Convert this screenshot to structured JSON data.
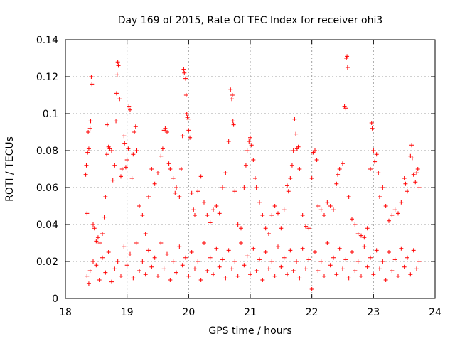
{
  "chart_data": {
    "type": "scatter",
    "title": "Day 169 of 2015, Rate Of TEC Index for receiver ohi3",
    "xlabel": "GPS time / hours",
    "ylabel": "ROTI / TECUs",
    "xlim": [
      18,
      24
    ],
    "ylim": [
      0,
      0.14
    ],
    "xticks": [
      18,
      19,
      20,
      21,
      22,
      23,
      24
    ],
    "yticks": [
      0,
      0.02,
      0.04,
      0.06,
      0.08,
      0.1,
      0.12,
      0.14
    ],
    "ytick_labels": [
      "0",
      "0.02",
      "0.04",
      "0.06",
      "0.08",
      "0.1",
      "0.12",
      "0.14"
    ],
    "grid": true,
    "marker": "+",
    "color": "#ff0000",
    "series": [
      {
        "name": "ROTI",
        "points": [
          [
            18.33,
            0.067
          ],
          [
            18.34,
            0.072
          ],
          [
            18.35,
            0.046
          ],
          [
            18.36,
            0.079
          ],
          [
            18.37,
            0.09
          ],
          [
            18.38,
            0.081
          ],
          [
            18.4,
            0.092
          ],
          [
            18.41,
            0.096
          ],
          [
            18.42,
            0.12
          ],
          [
            18.43,
            0.116
          ],
          [
            18.45,
            0.04
          ],
          [
            18.47,
            0.038
          ],
          [
            18.5,
            0.031
          ],
          [
            18.53,
            0.033
          ],
          [
            18.56,
            0.03
          ],
          [
            18.6,
            0.035
          ],
          [
            18.63,
            0.044
          ],
          [
            18.65,
            0.055
          ],
          [
            18.67,
            0.078
          ],
          [
            18.68,
            0.094
          ],
          [
            18.7,
            0.082
          ],
          [
            18.72,
            0.081
          ],
          [
            18.75,
            0.08
          ],
          [
            18.77,
            0.064
          ],
          [
            18.8,
            0.072
          ],
          [
            18.82,
            0.096
          ],
          [
            18.83,
            0.111
          ],
          [
            18.84,
            0.121
          ],
          [
            18.85,
            0.128
          ],
          [
            18.86,
            0.126
          ],
          [
            18.88,
            0.108
          ],
          [
            18.9,
            0.066
          ],
          [
            18.92,
            0.07
          ],
          [
            18.95,
            0.088
          ],
          [
            18.96,
            0.084
          ],
          [
            18.98,
            0.071
          ],
          [
            19.0,
            0.075
          ],
          [
            19.02,
            0.081
          ],
          [
            19.03,
            0.104
          ],
          [
            19.05,
            0.102
          ],
          [
            19.08,
            0.065
          ],
          [
            19.1,
            0.078
          ],
          [
            19.12,
            0.09
          ],
          [
            19.14,
            0.093
          ],
          [
            19.16,
            0.08
          ],
          [
            19.2,
            0.05
          ],
          [
            19.25,
            0.045
          ],
          [
            19.3,
            0.035
          ],
          [
            19.35,
            0.055
          ],
          [
            19.4,
            0.07
          ],
          [
            19.45,
            0.062
          ],
          [
            19.5,
            0.068
          ],
          [
            19.55,
            0.077
          ],
          [
            19.58,
            0.081
          ],
          [
            19.6,
            0.091
          ],
          [
            19.62,
            0.092
          ],
          [
            19.65,
            0.09
          ],
          [
            19.68,
            0.073
          ],
          [
            19.7,
            0.07
          ],
          [
            19.75,
            0.065
          ],
          [
            19.78,
            0.057
          ],
          [
            19.8,
            0.06
          ],
          [
            19.85,
            0.055
          ],
          [
            19.88,
            0.07
          ],
          [
            19.9,
            0.088
          ],
          [
            19.92,
            0.124
          ],
          [
            19.93,
            0.122
          ],
          [
            19.95,
            0.119
          ],
          [
            19.96,
            0.11
          ],
          [
            19.97,
            0.1
          ],
          [
            19.98,
            0.098
          ],
          [
            19.99,
            0.097
          ],
          [
            20.0,
            0.091
          ],
          [
            20.02,
            0.087
          ],
          [
            20.05,
            0.057
          ],
          [
            20.08,
            0.048
          ],
          [
            20.1,
            0.045
          ],
          [
            20.15,
            0.058
          ],
          [
            20.2,
            0.066
          ],
          [
            20.25,
            0.052
          ],
          [
            20.3,
            0.045
          ],
          [
            20.35,
            0.041
          ],
          [
            20.4,
            0.048
          ],
          [
            20.45,
            0.05
          ],
          [
            20.5,
            0.046
          ],
          [
            20.55,
            0.06
          ],
          [
            20.6,
            0.068
          ],
          [
            20.65,
            0.085
          ],
          [
            20.68,
            0.113
          ],
          [
            20.7,
            0.108
          ],
          [
            20.71,
            0.11
          ],
          [
            20.72,
            0.096
          ],
          [
            20.73,
            0.094
          ],
          [
            20.75,
            0.058
          ],
          [
            20.8,
            0.04
          ],
          [
            20.85,
            0.038
          ],
          [
            20.9,
            0.06
          ],
          [
            20.93,
            0.072
          ],
          [
            20.95,
            0.08
          ],
          [
            20.98,
            0.085
          ],
          [
            21.0,
            0.087
          ],
          [
            21.02,
            0.083
          ],
          [
            21.05,
            0.075
          ],
          [
            21.08,
            0.065
          ],
          [
            21.1,
            0.06
          ],
          [
            21.15,
            0.052
          ],
          [
            21.2,
            0.045
          ],
          [
            21.25,
            0.038
          ],
          [
            21.3,
            0.035
          ],
          [
            21.35,
            0.045
          ],
          [
            21.4,
            0.05
          ],
          [
            21.45,
            0.046
          ],
          [
            21.5,
            0.038
          ],
          [
            21.55,
            0.048
          ],
          [
            21.6,
            0.061
          ],
          [
            21.62,
            0.058
          ],
          [
            21.65,
            0.065
          ],
          [
            21.68,
            0.072
          ],
          [
            21.7,
            0.08
          ],
          [
            21.72,
            0.097
          ],
          [
            21.74,
            0.089
          ],
          [
            21.76,
            0.081
          ],
          [
            21.78,
            0.082
          ],
          [
            21.8,
            0.07
          ],
          [
            21.85,
            0.045
          ],
          [
            21.9,
            0.039
          ],
          [
            21.95,
            0.038
          ],
          [
            22.0,
            0.065
          ],
          [
            22.02,
            0.079
          ],
          [
            22.05,
            0.08
          ],
          [
            22.08,
            0.075
          ],
          [
            22.1,
            0.05
          ],
          [
            22.15,
            0.048
          ],
          [
            22.2,
            0.045
          ],
          [
            22.25,
            0.052
          ],
          [
            22.3,
            0.05
          ],
          [
            22.35,
            0.048
          ],
          [
            22.4,
            0.062
          ],
          [
            22.42,
            0.067
          ],
          [
            22.45,
            0.07
          ],
          [
            22.5,
            0.073
          ],
          [
            22.53,
            0.104
          ],
          [
            22.55,
            0.103
          ],
          [
            22.56,
            0.13
          ],
          [
            22.57,
            0.131
          ],
          [
            22.58,
            0.125
          ],
          [
            22.6,
            0.055
          ],
          [
            22.65,
            0.043
          ],
          [
            22.7,
            0.04
          ],
          [
            22.75,
            0.035
          ],
          [
            22.8,
            0.034
          ],
          [
            22.85,
            0.033
          ],
          [
            22.9,
            0.038
          ],
          [
            22.95,
            0.07
          ],
          [
            22.97,
            0.095
          ],
          [
            22.98,
            0.092
          ],
          [
            23.0,
            0.08
          ],
          [
            23.02,
            0.074
          ],
          [
            23.05,
            0.078
          ],
          [
            23.08,
            0.068
          ],
          [
            23.1,
            0.055
          ],
          [
            23.15,
            0.06
          ],
          [
            23.2,
            0.05
          ],
          [
            23.25,
            0.042
          ],
          [
            23.3,
            0.045
          ],
          [
            23.35,
            0.048
          ],
          [
            23.4,
            0.046
          ],
          [
            23.45,
            0.052
          ],
          [
            23.5,
            0.065
          ],
          [
            23.52,
            0.062
          ],
          [
            23.55,
            0.058
          ],
          [
            23.6,
            0.077
          ],
          [
            23.62,
            0.083
          ],
          [
            23.63,
            0.076
          ],
          [
            23.65,
            0.067
          ],
          [
            23.68,
            0.063
          ],
          [
            23.7,
            0.068
          ],
          [
            23.72,
            0.07
          ],
          [
            23.74,
            0.06
          ],
          [
            18.35,
            0.012
          ],
          [
            18.38,
            0.008
          ],
          [
            18.4,
            0.015
          ],
          [
            18.45,
            0.02
          ],
          [
            18.5,
            0.018
          ],
          [
            18.55,
            0.01
          ],
          [
            18.6,
            0.022
          ],
          [
            18.65,
            0.014
          ],
          [
            18.7,
            0.025
          ],
          [
            18.75,
            0.009
          ],
          [
            18.8,
            0.016
          ],
          [
            18.85,
            0.02
          ],
          [
            18.9,
            0.012
          ],
          [
            18.95,
            0.028
          ],
          [
            19.0,
            0.018
          ],
          [
            19.05,
            0.024
          ],
          [
            19.1,
            0.011
          ],
          [
            19.15,
            0.03
          ],
          [
            19.2,
            0.015
          ],
          [
            19.25,
            0.02
          ],
          [
            19.3,
            0.013
          ],
          [
            19.35,
            0.026
          ],
          [
            19.4,
            0.017
          ],
          [
            19.45,
            0.022
          ],
          [
            19.5,
            0.012
          ],
          [
            19.55,
            0.03
          ],
          [
            19.6,
            0.016
          ],
          [
            19.65,
            0.024
          ],
          [
            19.7,
            0.01
          ],
          [
            19.75,
            0.02
          ],
          [
            19.8,
            0.014
          ],
          [
            19.85,
            0.028
          ],
          [
            19.9,
            0.018
          ],
          [
            19.95,
            0.022
          ],
          [
            20.0,
            0.012
          ],
          [
            20.05,
            0.025
          ],
          [
            20.1,
            0.016
          ],
          [
            20.15,
            0.02
          ],
          [
            20.2,
            0.01
          ],
          [
            20.25,
            0.03
          ],
          [
            20.3,
            0.015
          ],
          [
            20.35,
            0.022
          ],
          [
            20.4,
            0.013
          ],
          [
            20.45,
            0.027
          ],
          [
            20.5,
            0.017
          ],
          [
            20.55,
            0.021
          ],
          [
            20.6,
            0.011
          ],
          [
            20.65,
            0.026
          ],
          [
            20.7,
            0.016
          ],
          [
            20.75,
            0.02
          ],
          [
            20.8,
            0.012
          ],
          [
            20.85,
            0.03
          ],
          [
            20.9,
            0.018
          ],
          [
            20.95,
            0.023
          ],
          [
            21.0,
            0.013
          ],
          [
            21.05,
            0.027
          ],
          [
            21.1,
            0.015
          ],
          [
            21.15,
            0.021
          ],
          [
            21.2,
            0.01
          ],
          [
            21.25,
            0.025
          ],
          [
            21.3,
            0.016
          ],
          [
            21.35,
            0.02
          ],
          [
            21.4,
            0.012
          ],
          [
            21.45,
            0.028
          ],
          [
            21.5,
            0.017
          ],
          [
            21.55,
            0.022
          ],
          [
            21.6,
            0.013
          ],
          [
            21.65,
            0.026
          ],
          [
            21.7,
            0.015
          ],
          [
            21.75,
            0.02
          ],
          [
            21.8,
            0.011
          ],
          [
            21.85,
            0.027
          ],
          [
            21.9,
            0.016
          ],
          [
            21.95,
            0.021
          ],
          [
            22.0,
            0.005
          ],
          [
            22.05,
            0.025
          ],
          [
            22.1,
            0.015
          ],
          [
            22.15,
            0.02
          ],
          [
            22.2,
            0.012
          ],
          [
            22.25,
            0.03
          ],
          [
            22.3,
            0.018
          ],
          [
            22.35,
            0.022
          ],
          [
            22.4,
            0.013
          ],
          [
            22.45,
            0.027
          ],
          [
            22.5,
            0.016
          ],
          [
            22.55,
            0.021
          ],
          [
            22.6,
            0.011
          ],
          [
            22.65,
            0.025
          ],
          [
            22.7,
            0.015
          ],
          [
            22.75,
            0.02
          ],
          [
            22.8,
            0.012
          ],
          [
            22.85,
            0.028
          ],
          [
            22.9,
            0.017
          ],
          [
            22.95,
            0.022
          ],
          [
            23.0,
            0.013
          ],
          [
            23.05,
            0.026
          ],
          [
            23.1,
            0.016
          ],
          [
            23.15,
            0.02
          ],
          [
            23.2,
            0.01
          ],
          [
            23.25,
            0.025
          ],
          [
            23.3,
            0.015
          ],
          [
            23.35,
            0.021
          ],
          [
            23.4,
            0.012
          ],
          [
            23.45,
            0.027
          ],
          [
            23.5,
            0.017
          ],
          [
            23.55,
            0.022
          ],
          [
            23.6,
            0.013
          ],
          [
            23.65,
            0.026
          ],
          [
            23.7,
            0.016
          ],
          [
            23.74,
            0.02
          ]
        ]
      }
    ]
  }
}
